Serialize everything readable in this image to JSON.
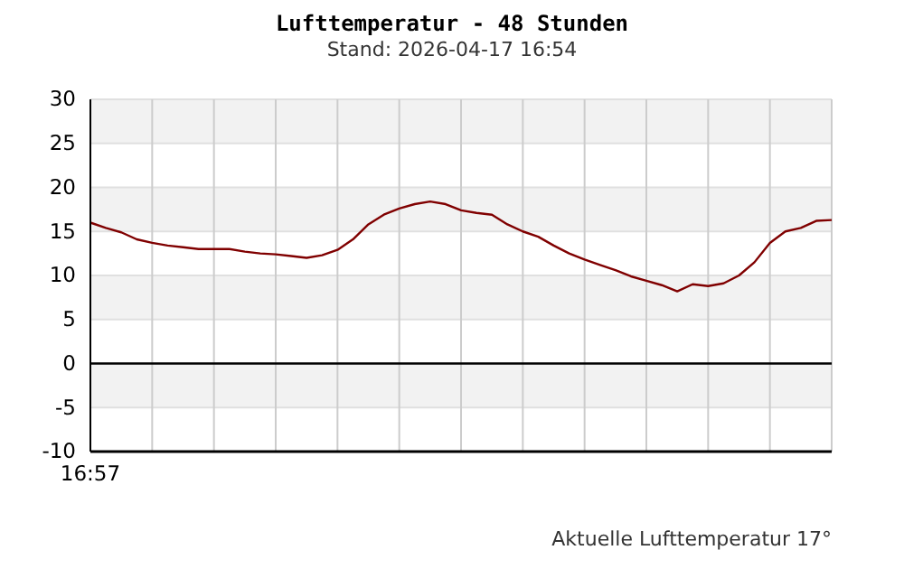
{
  "chart_data": {
    "type": "line",
    "title": "Lufttemperatur - 48 Stunden",
    "subtitle": "Stand: 2026-04-17 16:54",
    "annotations": [
      "16:57",
      "Aktuelle Lufttemperatur 17°"
    ],
    "categories": [
      null,
      null,
      null,
      null,
      null,
      null,
      null,
      null,
      null,
      null,
      null,
      null,
      null,
      null,
      null,
      null,
      null,
      null,
      null,
      null,
      null,
      null,
      null,
      null,
      null,
      null,
      null,
      null,
      null,
      null,
      null,
      null,
      null,
      null,
      null,
      null,
      null,
      null,
      null,
      null,
      null,
      null,
      null,
      null,
      null,
      null,
      null,
      null,
      null
    ],
    "ylim": [
      -10,
      30
    ],
    "yticks": [
      -10,
      -5,
      0,
      5,
      10,
      15,
      20,
      25,
      30
    ],
    "grid": true,
    "marker": "none",
    "line_style": "solid",
    "ref_lines": [
      {
        "axis": "y",
        "value": 0,
        "color": "#000000"
      }
    ],
    "series": [
      {
        "color": "#800000",
        "values": [
          16.0,
          15.4,
          14.9,
          14.1,
          13.7,
          13.4,
          13.2,
          13.0,
          13.0,
          13.0,
          12.7,
          12.5,
          12.4,
          12.2,
          12.0,
          12.3,
          12.9,
          14.1,
          15.8,
          16.9,
          17.6,
          18.1,
          18.4,
          18.1,
          17.4,
          17.1,
          16.9,
          15.8,
          15.0,
          14.4,
          13.4,
          12.5,
          11.8,
          11.2,
          10.6,
          9.9,
          9.4,
          8.9,
          8.2,
          9.0,
          8.8,
          9.1,
          10.0,
          11.5,
          13.7,
          15.0,
          15.4,
          16.2,
          16.3
        ]
      }
    ]
  }
}
